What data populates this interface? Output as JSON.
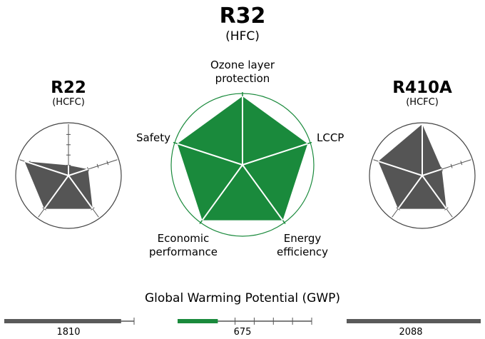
{
  "colors": {
    "accent_green": "#1a8a3c",
    "dark_gray": "#5a5a5a",
    "mid_gray": "#555555",
    "white": "#ffffff"
  },
  "center": {
    "title": "R32",
    "subtitle": "(HFC)",
    "axis_labels": {
      "ozone": "Ozone layer\nprotection",
      "lccp": "LCCP",
      "energy": "Energy\nefficiency",
      "economic": "Economic\nperformance",
      "safety": "Safety"
    }
  },
  "left": {
    "title": "R22",
    "subtitle": "(HCFC)"
  },
  "right": {
    "title": "R410A",
    "subtitle": "(HCFC)"
  },
  "gwp": {
    "title": "Global Warming Potential (GWP)",
    "bars": [
      {
        "name": "R22",
        "value": "1810",
        "fill_fraction": 0.9,
        "color": "#5a5a5a"
      },
      {
        "name": "R32",
        "value": "675",
        "fill_fraction": 0.3,
        "color": "#1a8a3c"
      },
      {
        "name": "R410A",
        "value": "2088",
        "fill_fraction": 1.0,
        "color": "#5a5a5a"
      }
    ]
  },
  "chart_data": [
    {
      "type": "radar",
      "name": "R22",
      "axes": [
        "Ozone layer protection",
        "LCCP",
        "Energy efficiency",
        "Economic performance",
        "Safety"
      ],
      "values": [
        0.2,
        0.4,
        0.8,
        0.8,
        0.9
      ],
      "scale_max": 1
    },
    {
      "type": "radar",
      "name": "R32",
      "axes": [
        "Ozone layer protection",
        "LCCP",
        "Energy efficiency",
        "Economic performance",
        "Safety"
      ],
      "values": [
        1,
        1,
        1,
        1,
        1
      ],
      "scale_max": 1
    },
    {
      "type": "radar",
      "name": "R410A",
      "axes": [
        "Ozone layer protection",
        "LCCP",
        "Energy efficiency",
        "Economic performance",
        "Safety"
      ],
      "values": [
        1,
        0.4,
        0.8,
        0.8,
        0.9
      ],
      "scale_max": 1
    }
  ]
}
